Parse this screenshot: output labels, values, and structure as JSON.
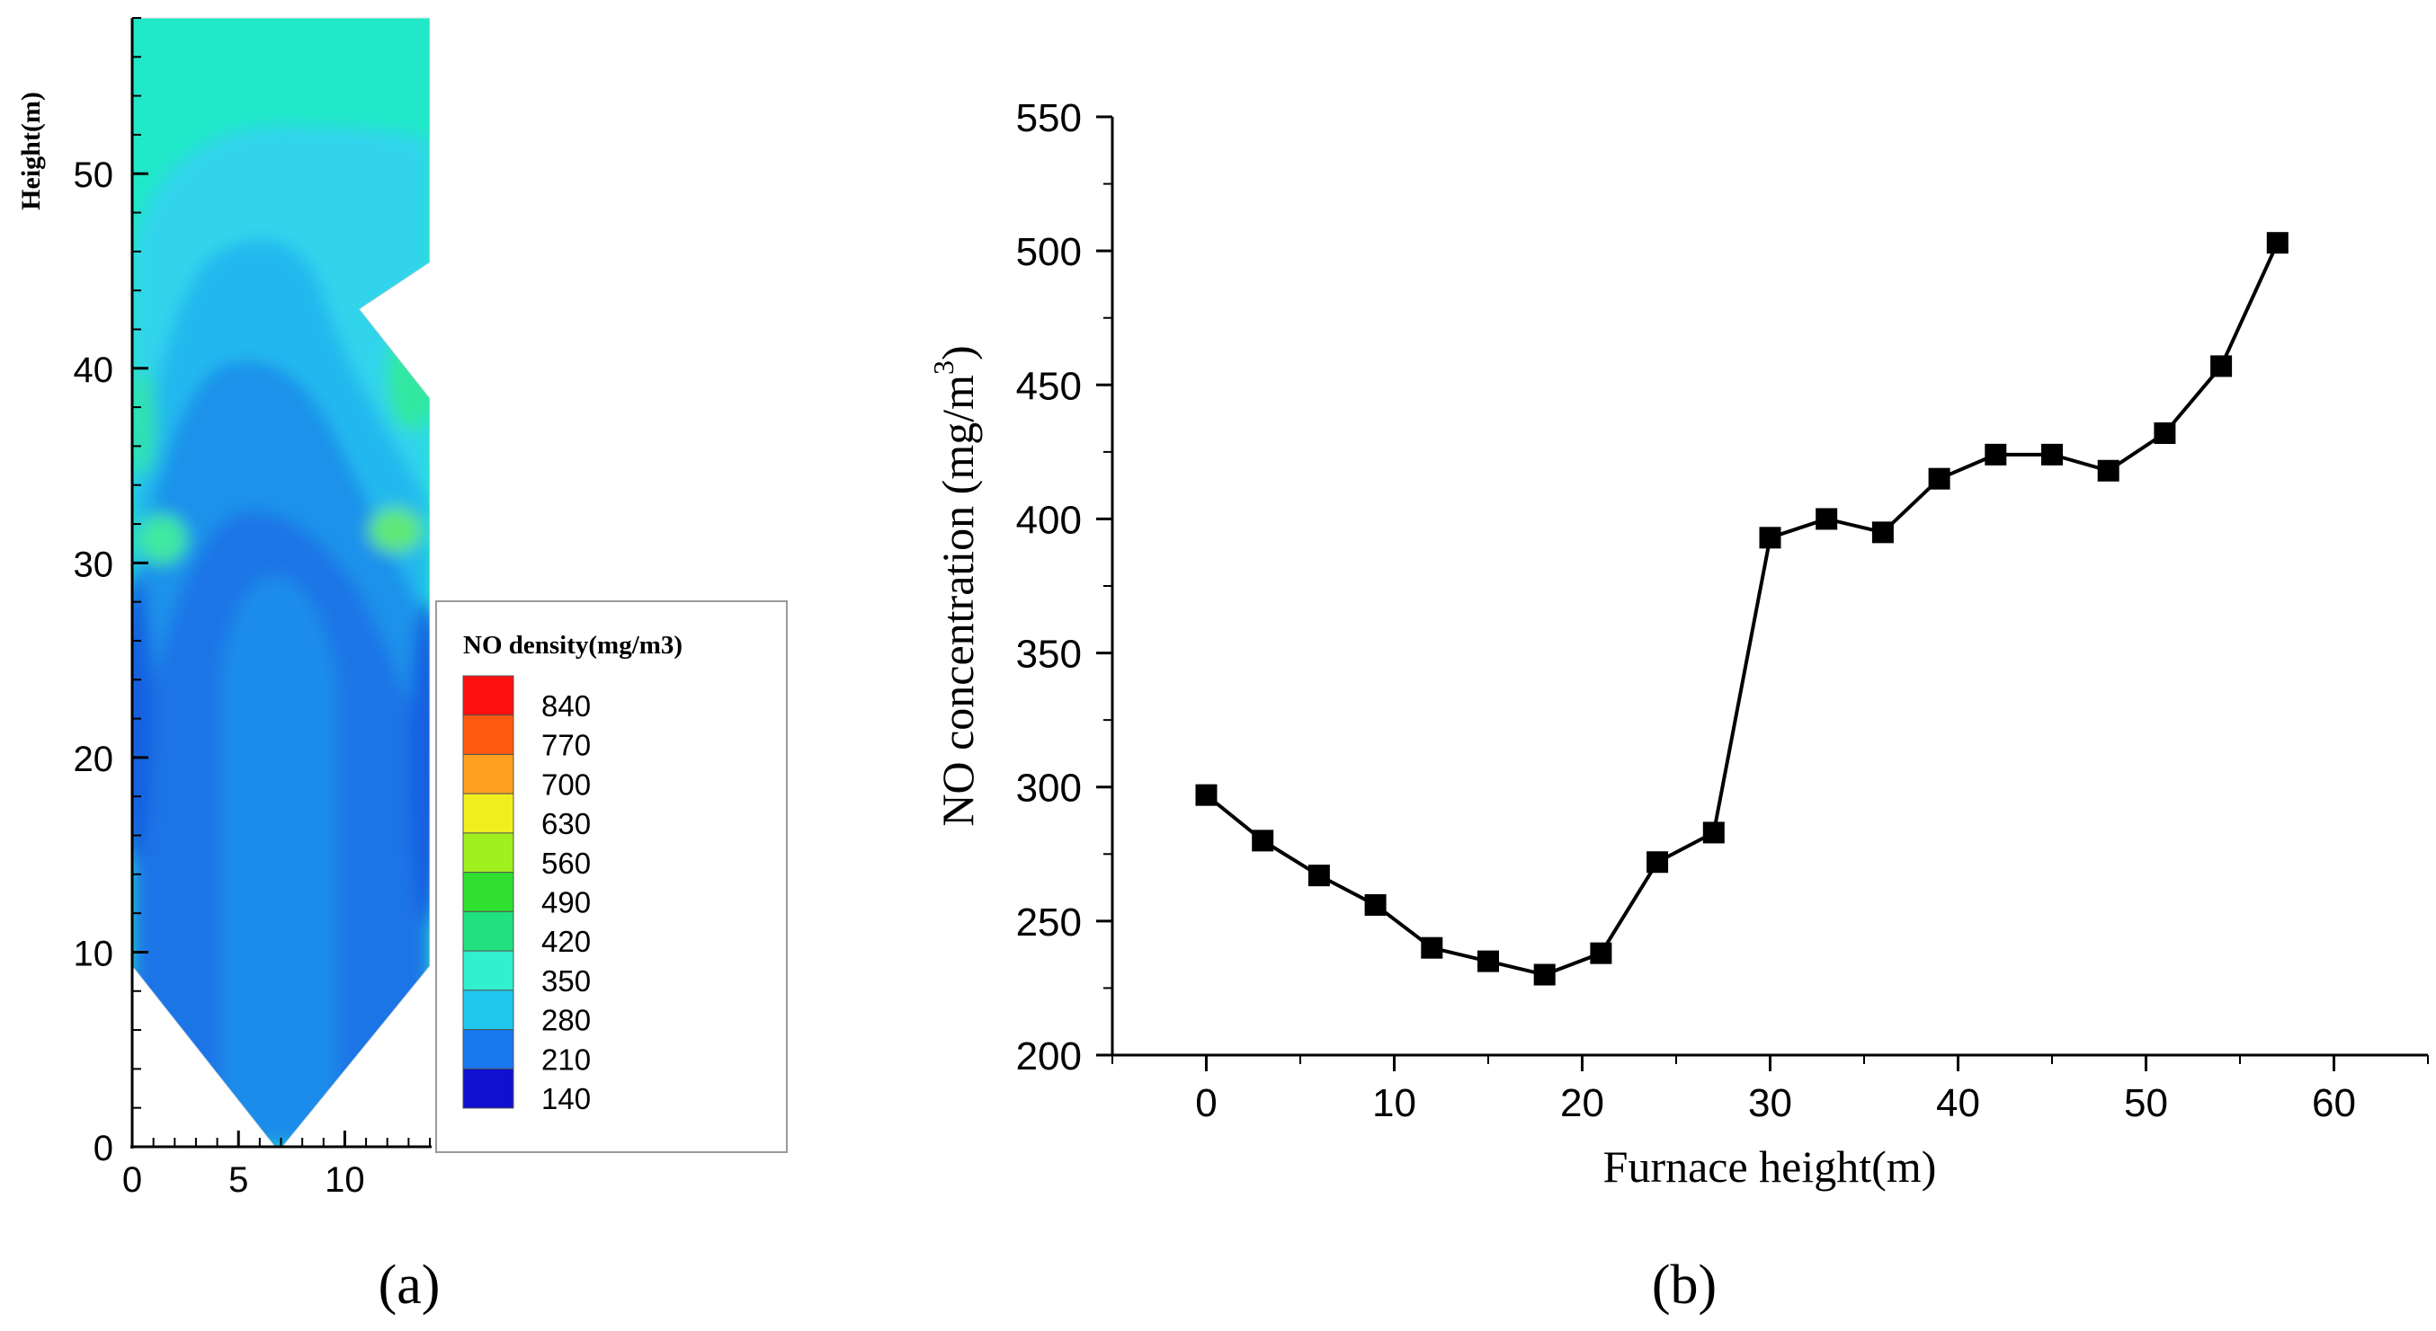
{
  "chart_data": [
    {
      "type": "heatmap",
      "panel_label": "(a)",
      "ylabel": "Height(m)",
      "x_ticks": [
        "0",
        "5",
        "10"
      ],
      "xlim": [
        0,
        14
      ],
      "y_ticks": [
        "0",
        "10",
        "20",
        "30",
        "40",
        "50"
      ],
      "ylim": [
        0,
        58
      ],
      "legend_title": "NO density(mg/m3)",
      "legend_levels": [
        "840",
        "770",
        "700",
        "630",
        "560",
        "490",
        "420",
        "350",
        "280",
        "210",
        "140"
      ],
      "legend_colors": [
        "#ff1010",
        "#ff5a10",
        "#ffa020",
        "#f0f020",
        "#a0f020",
        "#30e030",
        "#20e080",
        "#30f0d0",
        "#20c8f0",
        "#1878f0",
        "#1010d0"
      ]
    },
    {
      "type": "line",
      "panel_label": "(b)",
      "xlabel": "Furnace height(m)",
      "ylabel": "NO concentration (mg/m",
      "ylabel_superscript": "3",
      "ylabel_suffix": ")",
      "xlim": [
        -5,
        65
      ],
      "ylim": [
        200,
        550
      ],
      "x_ticks": [
        "0",
        "10",
        "20",
        "30",
        "40",
        "50",
        "60"
      ],
      "y_ticks": [
        "200",
        "250",
        "300",
        "350",
        "400",
        "450",
        "500",
        "550"
      ],
      "series": [
        {
          "name": "NO concentration",
          "x": [
            0,
            3,
            6,
            9,
            12,
            15,
            18,
            21,
            24,
            27,
            30,
            33,
            36,
            39,
            42,
            45,
            48,
            51,
            54,
            57
          ],
          "y": [
            297,
            280,
            267,
            256,
            240,
            235,
            230,
            238,
            272,
            283,
            393,
            400,
            395,
            415,
            424,
            424,
            418,
            432,
            457,
            503
          ]
        }
      ]
    }
  ]
}
